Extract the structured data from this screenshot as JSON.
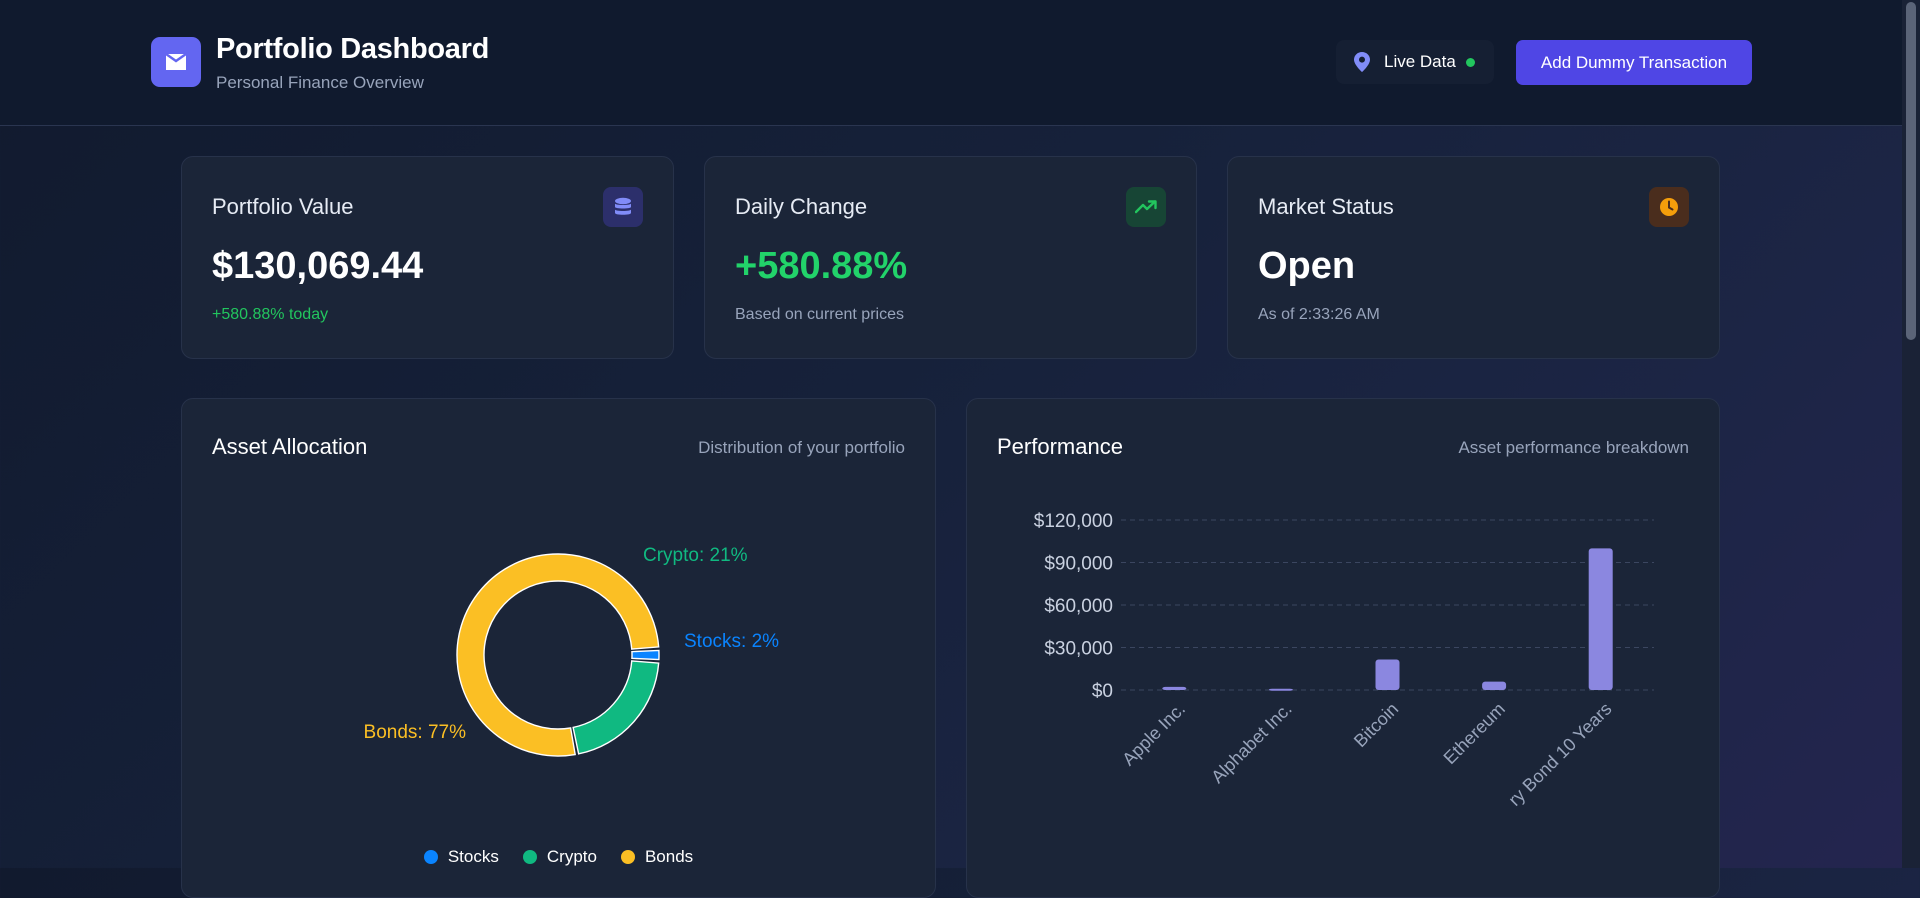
{
  "header": {
    "title": "Portfolio Dashboard",
    "subtitle": "Personal Finance Overview",
    "live_label": "Live Data",
    "add_button": "Add Dummy Transaction",
    "logo_icon": "wallet-icon"
  },
  "stats": {
    "portfolio": {
      "label": "Portfolio Value",
      "value": "$130,069.44",
      "sub": "+580.88% today",
      "icon": "database-icon"
    },
    "daily": {
      "label": "Daily Change",
      "value": "+580.88%",
      "sub": "Based on current prices",
      "icon": "trending-up-icon"
    },
    "market": {
      "label": "Market Status",
      "value": "Open",
      "sub": "As of 2:33:26 AM",
      "icon": "clock-icon"
    }
  },
  "colors": {
    "accent": "#4f46e5",
    "positive": "#22c55e",
    "stocks": "#0a84ff",
    "crypto": "#10b981",
    "bonds": "#fbbf24",
    "bar": "#8b87e0"
  },
  "allocation": {
    "title": "Asset Allocation",
    "subtitle": "Distribution of your portfolio",
    "legend": [
      "Stocks",
      "Crypto",
      "Bonds"
    ]
  },
  "performance": {
    "title": "Performance",
    "subtitle": "Asset performance breakdown"
  },
  "chart_data": [
    {
      "type": "pie",
      "variant": "donut",
      "categories": [
        "Stocks",
        "Crypto",
        "Bonds"
      ],
      "values": [
        2,
        21,
        77
      ],
      "labels": [
        "Stocks: 2%",
        "Crypto: 21%",
        "Bonds: 77%"
      ],
      "legend": "bottom"
    },
    {
      "type": "bar",
      "categories": [
        "Apple Inc.",
        "Alphabet Inc.",
        "Bitcoin",
        "Ethereum",
        "ry Bond 10 Years"
      ],
      "values": [
        2200,
        900,
        21500,
        5900,
        100000
      ],
      "yticks": [
        "$0",
        "$30,000",
        "$60,000",
        "$90,000",
        "$120,000"
      ],
      "ylim": [
        0,
        120000
      ],
      "grid": true
    }
  ]
}
